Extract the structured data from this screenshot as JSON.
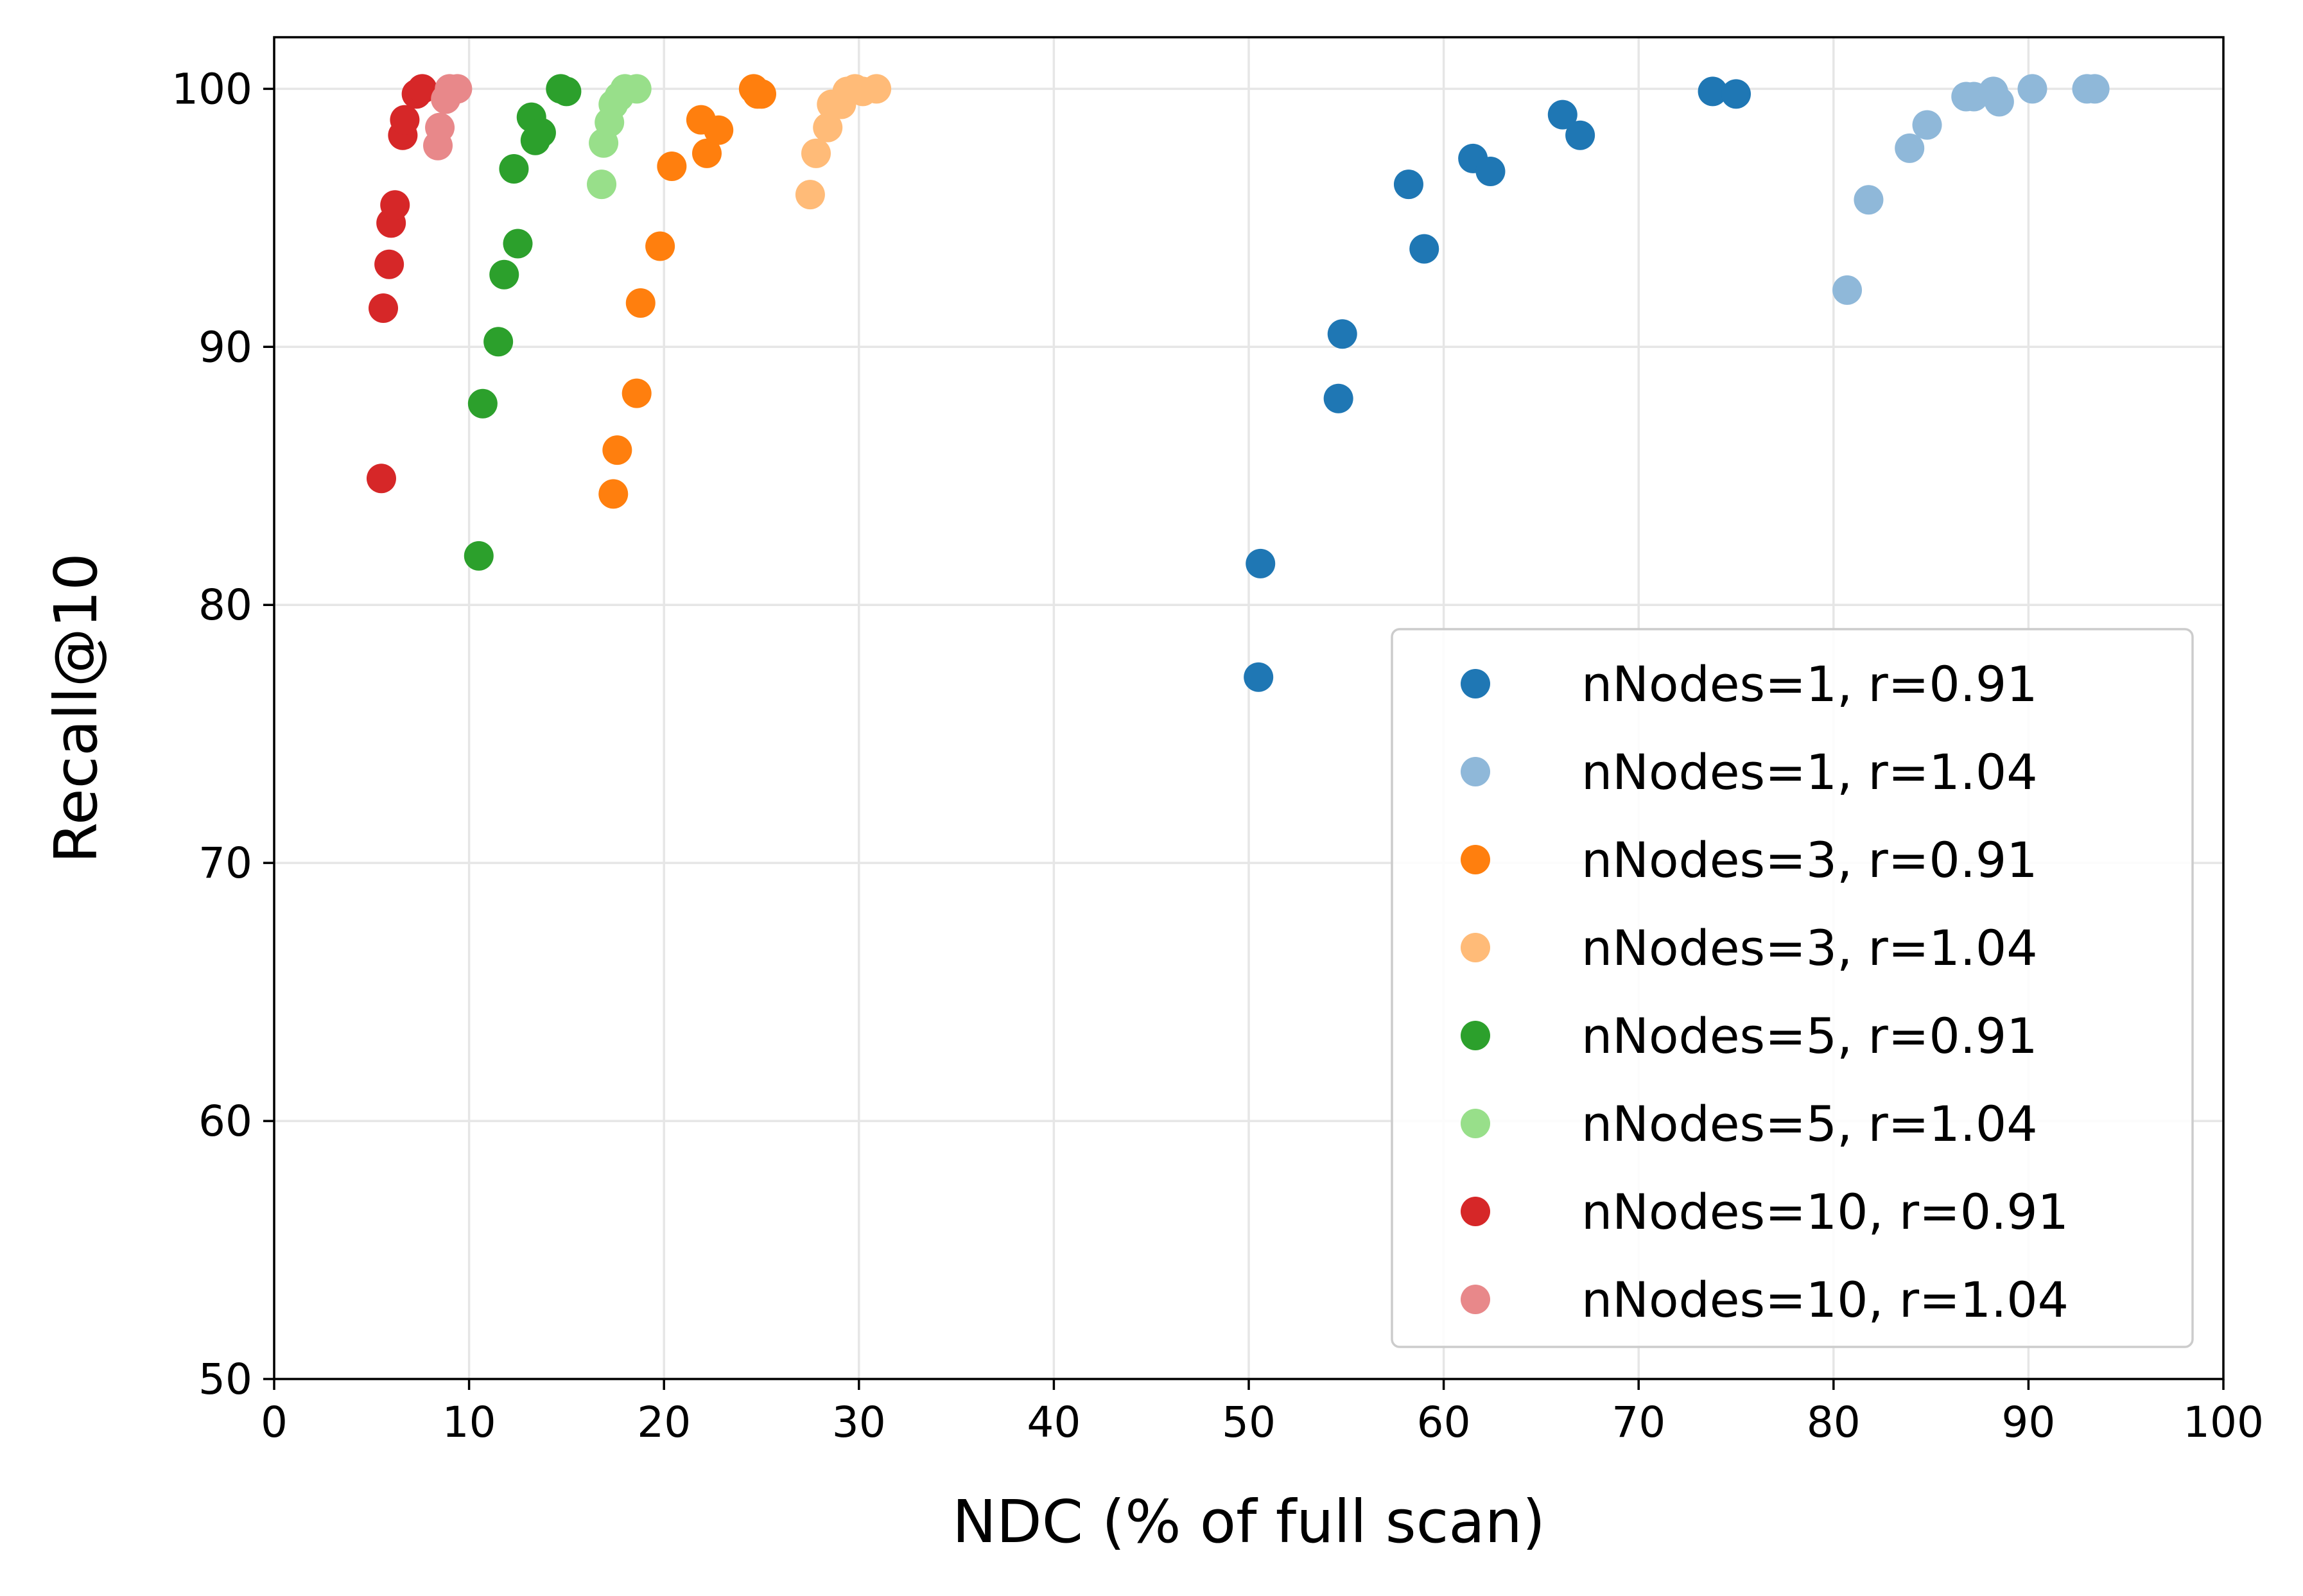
{
  "chart_data": {
    "type": "scatter",
    "title": "",
    "xlabel": "NDC (% of full scan)",
    "ylabel": "Recall@10",
    "xlim": [
      0,
      100
    ],
    "ylim": [
      50,
      102
    ],
    "xticks": [
      0,
      10,
      20,
      30,
      40,
      50,
      60,
      70,
      80,
      90,
      100
    ],
    "yticks": [
      50,
      60,
      70,
      80,
      90,
      100
    ],
    "grid": true,
    "legend_position": "lower-right",
    "series": [
      {
        "name": "nNodes=1, r=0.91",
        "color": "#1f77b4",
        "points": [
          [
            50.5,
            77.2
          ],
          [
            50.6,
            81.6
          ],
          [
            54.6,
            88.0
          ],
          [
            54.8,
            90.5
          ],
          [
            58.2,
            96.3
          ],
          [
            59.0,
            93.8
          ],
          [
            61.5,
            97.3
          ],
          [
            62.4,
            96.8
          ],
          [
            66.1,
            99.0
          ],
          [
            67.0,
            98.2
          ],
          [
            73.8,
            99.9
          ],
          [
            75.0,
            99.8
          ]
        ]
      },
      {
        "name": "nNodes=1, r=1.04",
        "color": "#8fb8d9",
        "points": [
          [
            80.7,
            92.2
          ],
          [
            81.8,
            95.7
          ],
          [
            83.9,
            97.7
          ],
          [
            84.8,
            98.6
          ],
          [
            86.8,
            99.7
          ],
          [
            87.2,
            99.7
          ],
          [
            88.2,
            99.9
          ],
          [
            88.5,
            99.5
          ],
          [
            90.2,
            100.0
          ],
          [
            93.0,
            100.0
          ],
          [
            93.4,
            100.0
          ]
        ]
      },
      {
        "name": "nNodes=3, r=0.91",
        "color": "#ff7f0e",
        "points": [
          [
            17.4,
            84.3
          ],
          [
            17.6,
            86.0
          ],
          [
            18.6,
            88.2
          ],
          [
            18.8,
            91.7
          ],
          [
            19.8,
            93.9
          ],
          [
            20.4,
            97.0
          ],
          [
            21.9,
            98.8
          ],
          [
            22.2,
            97.5
          ],
          [
            22.8,
            98.4
          ],
          [
            24.6,
            100.0
          ],
          [
            24.8,
            99.8
          ],
          [
            25.0,
            99.8
          ]
        ]
      },
      {
        "name": "nNodes=3, r=1.04",
        "color": "#ffbb78",
        "points": [
          [
            27.5,
            95.9
          ],
          [
            27.8,
            97.5
          ],
          [
            28.4,
            98.5
          ],
          [
            28.6,
            99.4
          ],
          [
            29.1,
            99.4
          ],
          [
            29.4,
            99.9
          ],
          [
            29.8,
            100.0
          ],
          [
            30.2,
            99.9
          ],
          [
            30.9,
            100.0
          ]
        ]
      },
      {
        "name": "nNodes=5, r=0.91",
        "color": "#2ca02c",
        "points": [
          [
            10.5,
            81.9
          ],
          [
            10.7,
            87.8
          ],
          [
            11.5,
            90.2
          ],
          [
            11.8,
            92.8
          ],
          [
            12.3,
            96.9
          ],
          [
            12.5,
            94.0
          ],
          [
            13.2,
            98.9
          ],
          [
            13.4,
            98.0
          ],
          [
            13.7,
            98.3
          ],
          [
            14.7,
            100.0
          ],
          [
            15.0,
            99.9
          ]
        ]
      },
      {
        "name": "nNodes=5, r=1.04",
        "color": "#98df8a",
        "points": [
          [
            16.8,
            96.3
          ],
          [
            16.9,
            97.9
          ],
          [
            17.2,
            98.7
          ],
          [
            17.4,
            99.4
          ],
          [
            17.7,
            99.7
          ],
          [
            18.0,
            100.0
          ],
          [
            18.6,
            100.0
          ]
        ]
      },
      {
        "name": "nNodes=10, r=0.91",
        "color": "#d62728",
        "points": [
          [
            5.5,
            84.9
          ],
          [
            5.6,
            91.5
          ],
          [
            5.9,
            93.2
          ],
          [
            6.0,
            94.8
          ],
          [
            6.2,
            95.5
          ],
          [
            6.6,
            98.2
          ],
          [
            6.7,
            98.8
          ],
          [
            7.3,
            99.8
          ],
          [
            7.6,
            100.0
          ]
        ]
      },
      {
        "name": "nNodes=10, r=1.04",
        "color": "#e8888a",
        "points": [
          [
            8.4,
            97.8
          ],
          [
            8.5,
            98.5
          ],
          [
            8.8,
            99.6
          ],
          [
            9.0,
            100.0
          ],
          [
            9.4,
            100.0
          ]
        ]
      }
    ]
  }
}
